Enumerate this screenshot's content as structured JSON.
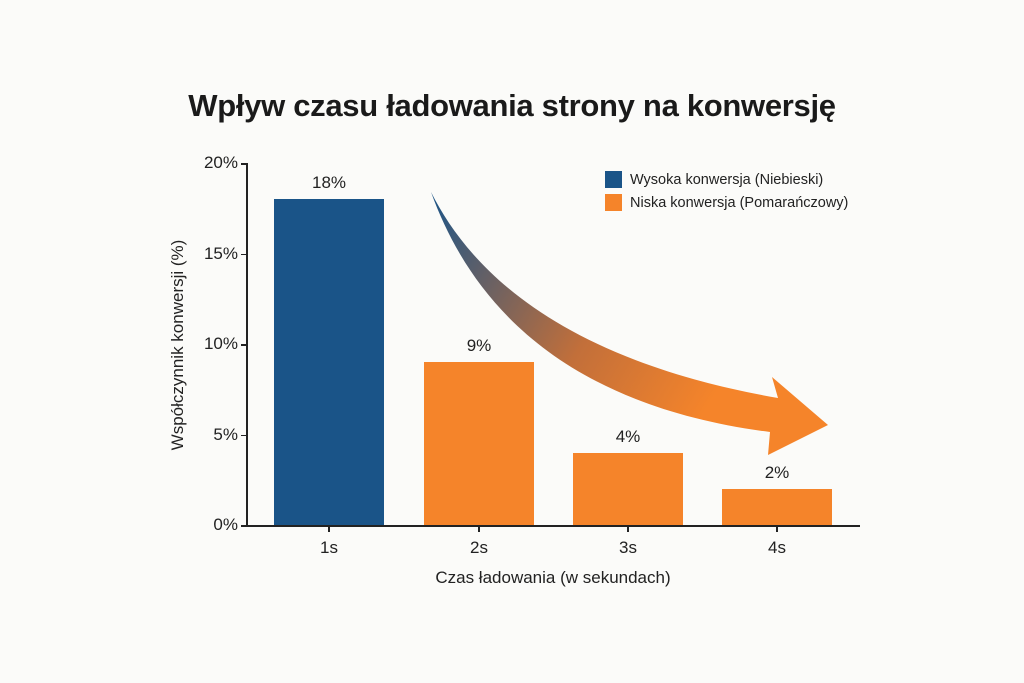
{
  "title": "Wpływ czasu ładowania strony na konwersję",
  "colors": {
    "high": "#1a5488",
    "low": "#f5842a"
  },
  "legend": [
    {
      "label": "Wysoka konwersja (Niebieski)",
      "color": "#1a5488"
    },
    {
      "label": "Niska konwersja (Pomarańczowy)",
      "color": "#f5842a"
    }
  ],
  "axes": {
    "ylabel": "Współczynnik konwersji (%)",
    "xlabel": "Czas ładowania (w sekundach)",
    "yticks": [
      "0%",
      "5%",
      "10%",
      "15%",
      "20%"
    ]
  },
  "bars": [
    {
      "category": "1s",
      "value": 18,
      "label": "18%",
      "group": "high"
    },
    {
      "category": "2s",
      "value": 9,
      "label": "9%",
      "group": "low"
    },
    {
      "category": "3s",
      "value": 4,
      "label": "4%",
      "group": "low"
    },
    {
      "category": "4s",
      "value": 2,
      "label": "2%",
      "group": "low"
    }
  ],
  "chart_data": {
    "type": "bar",
    "title": "Wpływ czasu ładowania strony na konwersję",
    "categories": [
      "1s",
      "2s",
      "3s",
      "4s"
    ],
    "values": [
      18,
      9,
      4,
      2
    ],
    "data_labels": [
      "18%",
      "9%",
      "4%",
      "2%"
    ],
    "series": [
      {
        "name": "Wysoka konwersja (Niebieski)",
        "color": "#1a5488",
        "values": [
          18,
          null,
          null,
          null
        ]
      },
      {
        "name": "Niska konwersja (Pomarańczowy)",
        "color": "#f5842a",
        "values": [
          null,
          9,
          4,
          2
        ]
      }
    ],
    "xlabel": "Czas ładowania (w sekundach)",
    "ylabel": "Współczynnik konwersji (%)",
    "ylim": [
      0,
      20
    ],
    "yticks": [
      0,
      5,
      10,
      15,
      20
    ],
    "ytick_labels": [
      "0%",
      "5%",
      "10%",
      "15%",
      "20%"
    ],
    "grid": false,
    "legend_position": "top-right",
    "annotations": [
      "curved downward arrow from blue to orange indicating decreasing conversion"
    ]
  }
}
